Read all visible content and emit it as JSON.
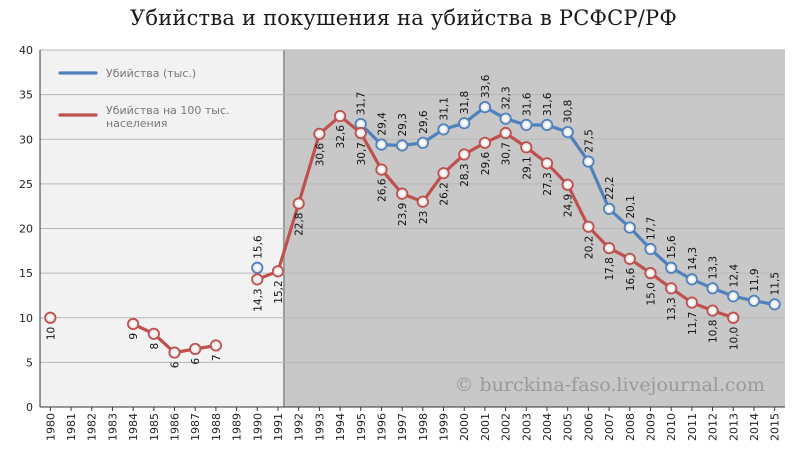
{
  "chart_data": {
    "type": "line",
    "title": "Убийства и покушения на убийства в РСФСР/РФ",
    "ylim": [
      0,
      40
    ],
    "yticks": [
      0,
      5,
      10,
      15,
      20,
      25,
      30,
      35,
      40
    ],
    "categories": [
      "1980",
      "1981",
      "1982",
      "1983",
      "1984",
      "1985",
      "1986",
      "1987",
      "1988",
      "1989",
      "1990",
      "1991",
      "1992",
      "1993",
      "1994",
      "1995",
      "1996",
      "1997",
      "1998",
      "1999",
      "2000",
      "2001",
      "2002",
      "2003",
      "2004",
      "2005",
      "2006",
      "2007",
      "2008",
      "2009",
      "2010",
      "2011",
      "2012",
      "2013",
      "2014",
      "2015"
    ],
    "shaded_region_start": "1991",
    "watermark": "© burckina-faso.livejournal.com",
    "series": [
      {
        "name": "Убийства (тыс.)",
        "color": "#4f81bd",
        "values": [
          null,
          null,
          null,
          null,
          null,
          null,
          null,
          null,
          null,
          null,
          15.6,
          null,
          null,
          null,
          null,
          31.7,
          29.4,
          29.3,
          29.6,
          31.1,
          31.8,
          33.6,
          32.3,
          31.6,
          31.6,
          30.8,
          27.5,
          22.2,
          20.1,
          17.7,
          15.6,
          14.3,
          13.3,
          12.4,
          11.9,
          11.5
        ],
        "labels": [
          null,
          null,
          null,
          null,
          null,
          null,
          null,
          null,
          null,
          null,
          "15,6",
          null,
          null,
          null,
          null,
          "31,7",
          "29,4",
          "29,3",
          "29,6",
          "31,1",
          "31,8",
          "33,6",
          "32,3",
          "31,6",
          "31,6",
          "30,8",
          "27,5",
          "22,2",
          "20,1",
          "17,7",
          "15,6",
          "14,3",
          "13,3",
          "12,4",
          "11,9",
          "11,5"
        ]
      },
      {
        "name": "Убийства на 100 тыс. населения",
        "color": "#c0504d",
        "values": [
          10,
          null,
          null,
          null,
          9.3,
          8.2,
          6.1,
          6.5,
          6.9,
          null,
          14.3,
          15.2,
          22.8,
          30.6,
          32.6,
          30.7,
          26.6,
          23.9,
          23,
          26.2,
          28.3,
          29.6,
          30.7,
          29.1,
          27.3,
          24.9,
          20.2,
          17.8,
          16.6,
          15.0,
          13.3,
          11.7,
          10.8,
          10.0,
          null,
          null
        ],
        "labels": [
          "10",
          null,
          null,
          null,
          "9",
          "8",
          "6",
          "6",
          "7",
          null,
          "14,3",
          "15,2",
          "22,8",
          "30,6",
          "32,6",
          "30,7",
          "26,6",
          "23,9",
          "23",
          "26,2",
          "28,3",
          "29,6",
          "30,7",
          "29,1",
          "27,3",
          "24,9",
          "20,2",
          "17,8",
          "16,6",
          "15,0",
          "13,3",
          "11,7",
          "10,8",
          "10,0",
          null,
          null
        ]
      }
    ]
  }
}
